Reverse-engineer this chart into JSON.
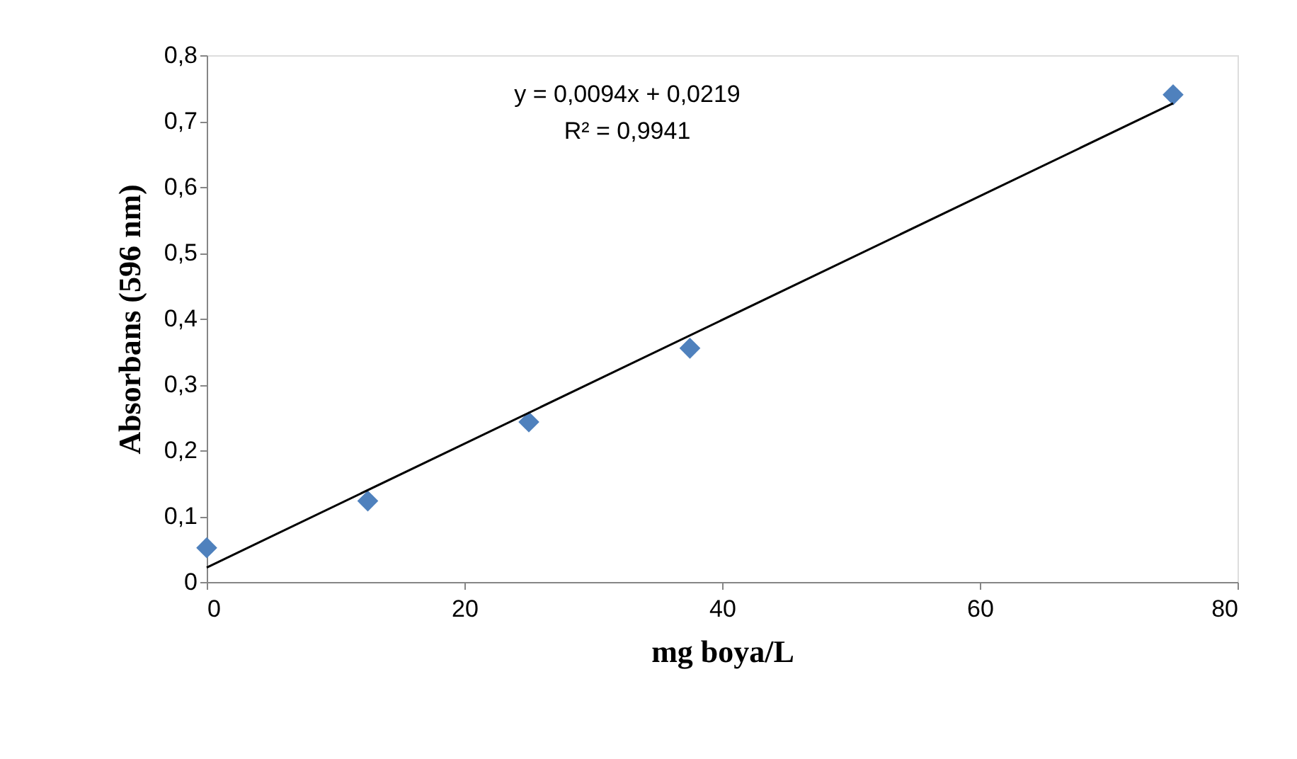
{
  "chart_data": {
    "type": "scatter",
    "xlabel": "mg boya/L",
    "ylabel": "Absorbans (596 nm)",
    "annotations": [
      "y = 0,0094x + 0,0219",
      "R² = 0,9941"
    ],
    "x": [
      0,
      12.5,
      25,
      37.5,
      75
    ],
    "series": [
      {
        "color": "#4f81bd",
        "marker": "diamond",
        "values": [
          0.052,
          0.123,
          0.243,
          0.355,
          0.74
        ]
      },
      {
        "type": "line",
        "color": "#000000",
        "marker": "none",
        "line_style": "solid",
        "x": [
          0,
          75
        ],
        "values": [
          0.022,
          0.727
        ]
      }
    ],
    "xlim": [
      0,
      80
    ],
    "xticks": [
      0,
      20,
      40,
      60,
      80
    ],
    "ylim": [
      0,
      0.8
    ],
    "yticks": [
      {
        "value": 0,
        "label": "0"
      },
      {
        "value": 0.1,
        "label": "0,1"
      },
      {
        "value": 0.2,
        "label": "0,2"
      },
      {
        "value": 0.3,
        "label": "0,3"
      },
      {
        "value": 0.4,
        "label": "0,4"
      },
      {
        "value": 0.5,
        "label": "0,5"
      },
      {
        "value": 0.6,
        "label": "0,6"
      },
      {
        "value": 0.7,
        "label": "0,7"
      },
      {
        "value": 0.8,
        "label": "0,8"
      }
    ],
    "grid": false
  }
}
